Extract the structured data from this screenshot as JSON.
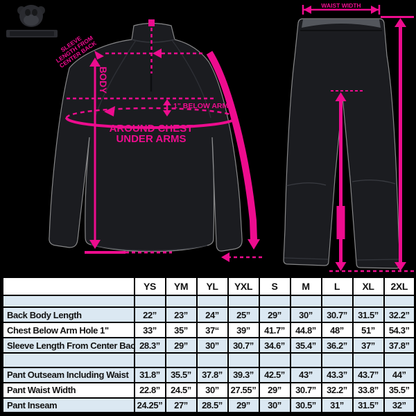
{
  "accent_color": "#ed0c8e",
  "table_alt_row_color": "#dbe8f2",
  "logo": {
    "icon": "gorilla-mascot-logo-icon"
  },
  "annotations": {
    "jacket": {
      "center_back_marker": "center-back-tick",
      "sleeve_label_lines": [
        "SLEEVE",
        "LENGTH FROM",
        "CENTER BACK"
      ],
      "body_label": "BODY",
      "below_arms_label": "1\" BELOW ARMS",
      "around_chest_line1": "AROUND CHEST",
      "around_chest_line2": "UNDER ARMS"
    },
    "pants": {
      "waist_label": "WAIST WIDTH"
    }
  },
  "table": {
    "size_headers": [
      "YS",
      "YM",
      "YL",
      "YXL",
      "S",
      "M",
      "L",
      "XL",
      "2XL"
    ],
    "rows": [
      {
        "label": "Back Body Length",
        "values": [
          "22”",
          "23”",
          "24”",
          "25”",
          "29”",
          "30”",
          "30.7”",
          "31.5”",
          "32.2”"
        ]
      },
      {
        "label": "Chest Below Arm Hole 1\"",
        "values": [
          "33”",
          "35”",
          "37“",
          "39”",
          "41.7”",
          "44.8”",
          "48”",
          "51”",
          "54.3”"
        ]
      },
      {
        "label": "Sleeve Length From Center Back",
        "values": [
          "28.3”",
          "29”",
          "30”",
          "30.7”",
          "34.6”",
          "35.4”",
          "36.2”",
          "37”",
          "37.8”"
        ]
      },
      {
        "label": "Pant Outseam Including Waist",
        "values": [
          "31.8”",
          "35.5”",
          "37.8”",
          "39.3”",
          "42.5”",
          "43”",
          "43.3”",
          "43.7”",
          "44”"
        ]
      },
      {
        "label": "Pant Waist Width",
        "values": [
          "22.8”",
          "24.5”",
          "30”",
          "27.55”",
          "29”",
          "30.7”",
          "32.2”",
          "33.8”",
          "35.5”"
        ]
      },
      {
        "label": "Pant Inseam",
        "values": [
          "24.25”",
          "27”",
          "28.5”",
          "29”",
          "30”",
          "30.5”",
          "31”",
          "31.5”",
          "32”"
        ]
      }
    ]
  }
}
